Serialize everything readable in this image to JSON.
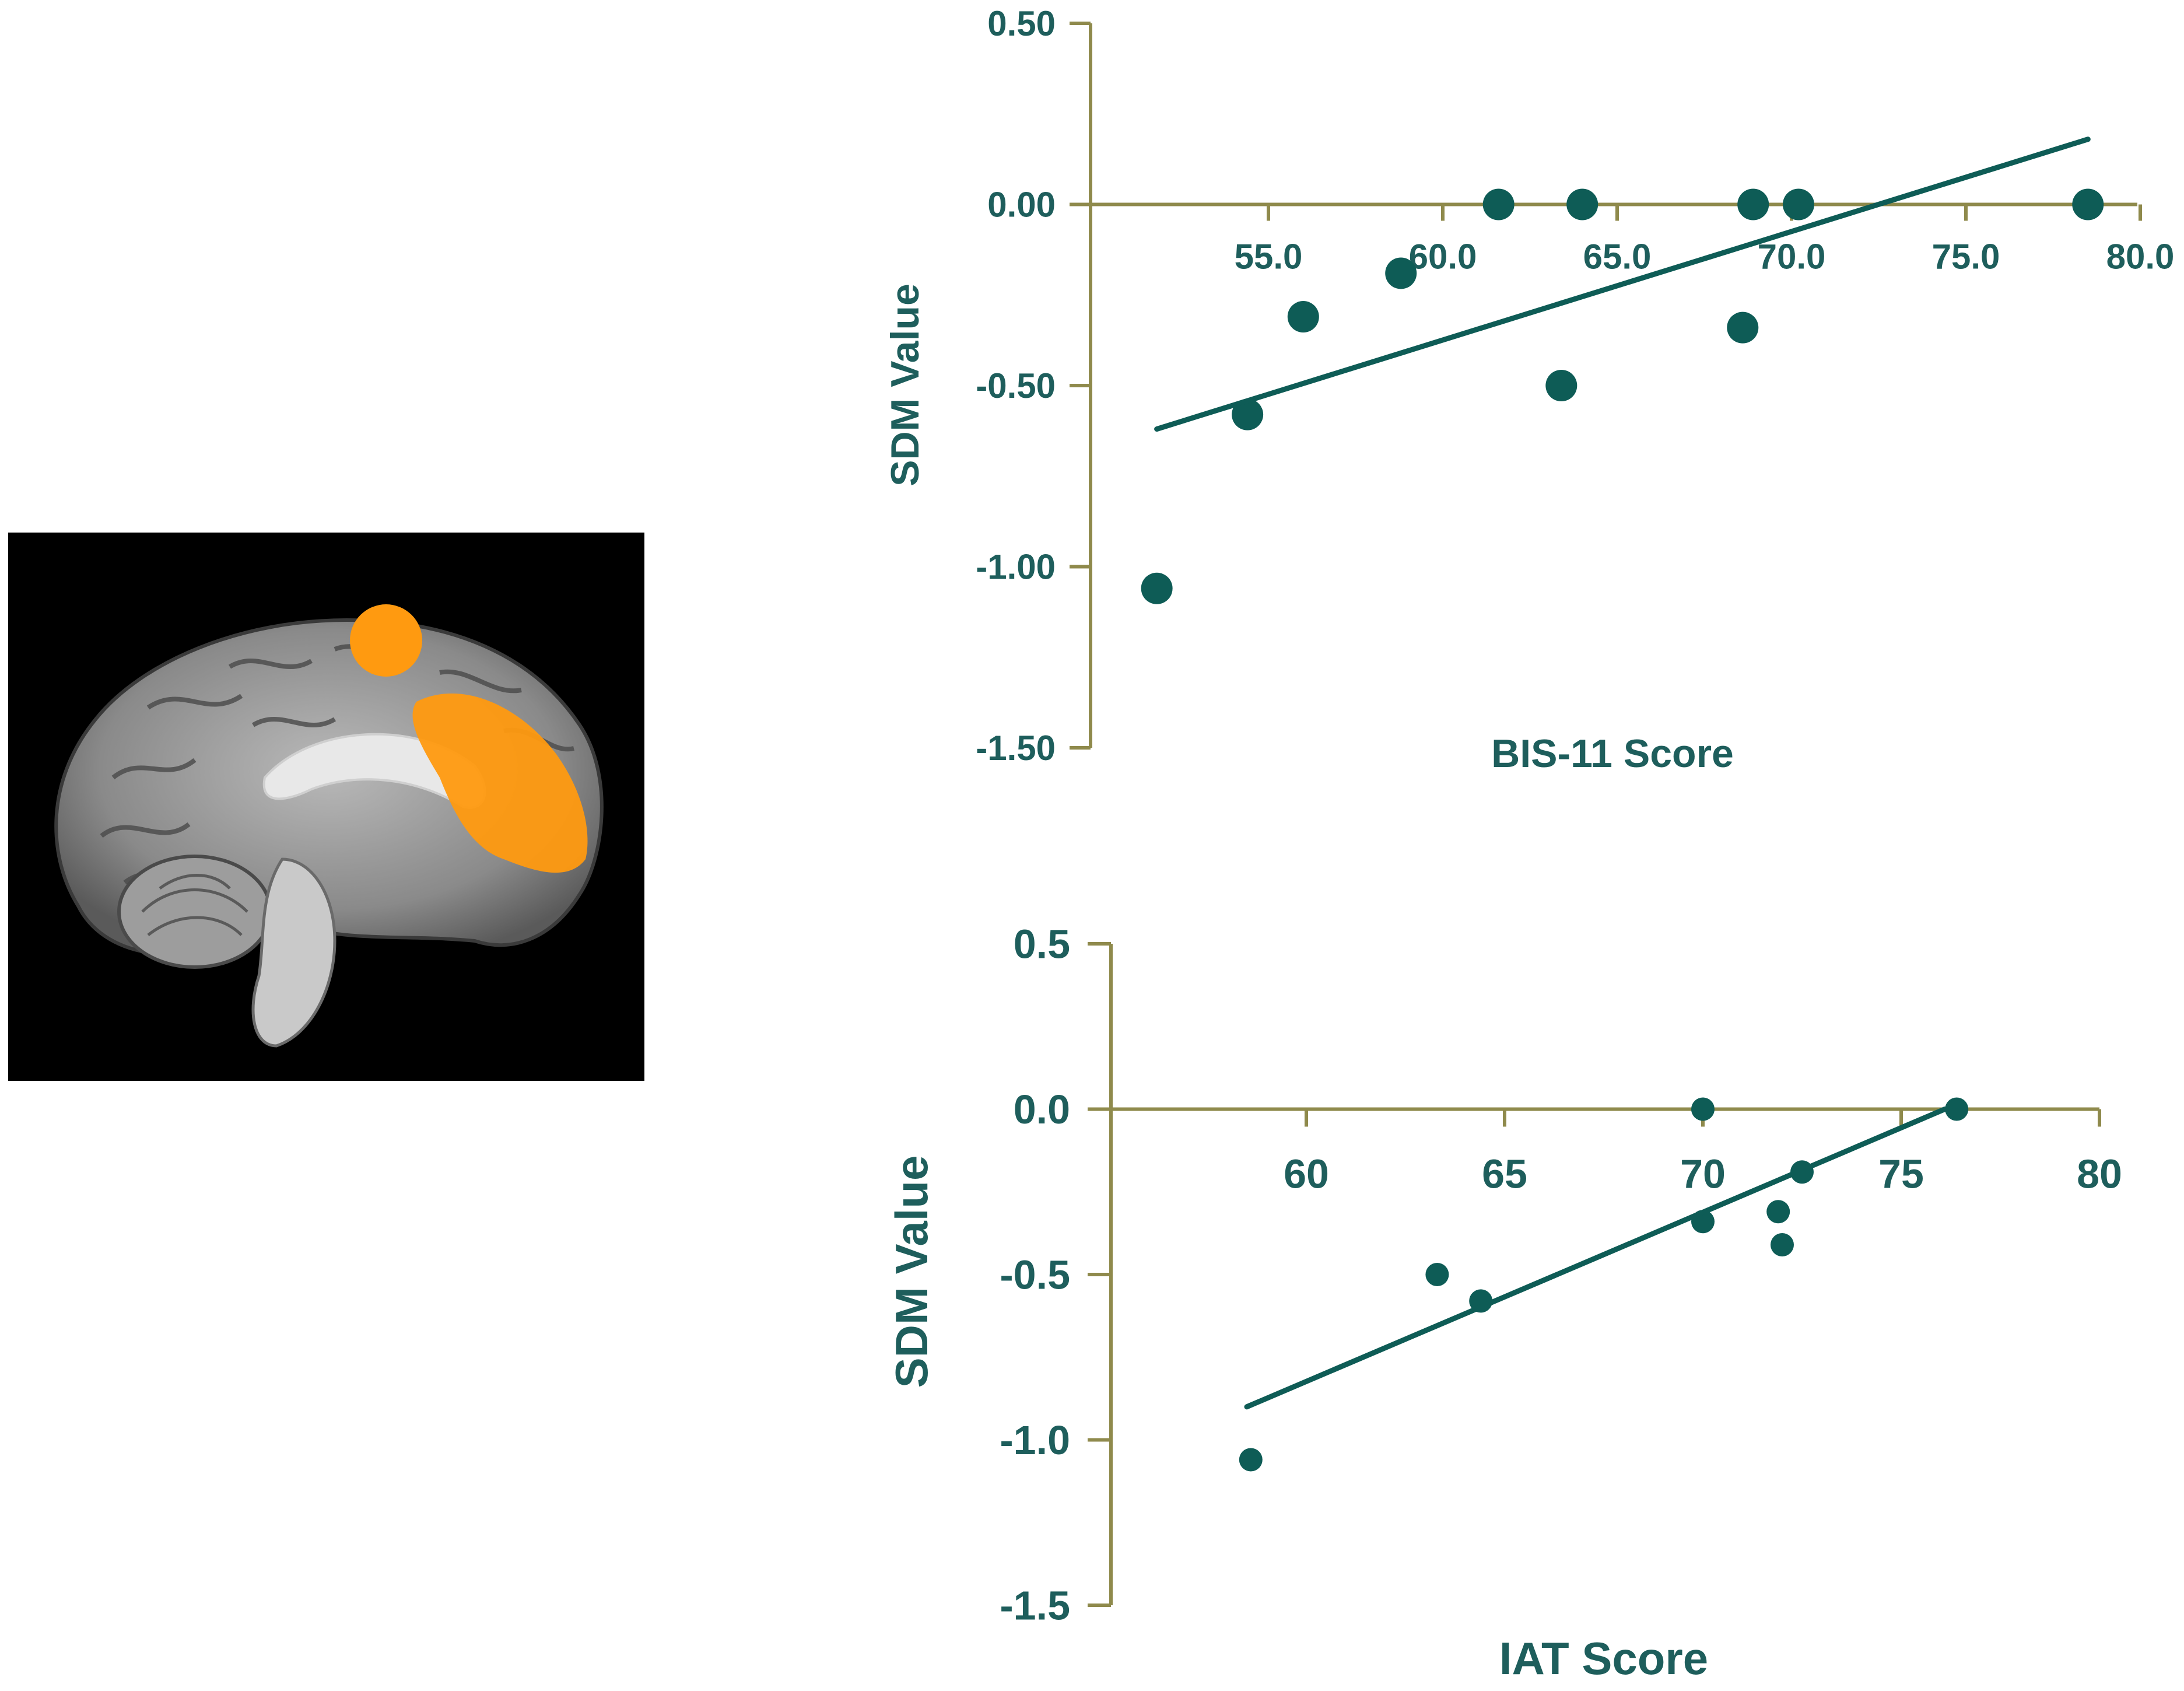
{
  "colors": {
    "axis": "#8f8a4c",
    "marker": "#0e5c56",
    "fit_line": "#0e5c56",
    "text": "#1e5e5c",
    "brain_highlight": "#ff9a10"
  },
  "brain_image": {
    "region": "highlighted medial prefrontal cortex / anterior cingulate cluster"
  },
  "chart_data": [
    {
      "type": "scatter",
      "xlabel": "BIS-11 Score",
      "ylabel": "SDM Value",
      "xlim": [
        50.0,
        80.0
      ],
      "ylim": [
        -1.5,
        0.5
      ],
      "x_ticks": [
        55.0,
        60.0,
        65.0,
        70.0,
        75.0,
        80.0
      ],
      "x_tick_labels": [
        "55.0",
        "60.0",
        "65.0",
        "70.0",
        "75.0",
        "80.0"
      ],
      "y_ticks": [
        0.5,
        0.0,
        -0.5,
        -1.0,
        -1.5
      ],
      "y_tick_labels": [
        "0.50",
        "0.00",
        "-0.50",
        "-1.00",
        "-1.50"
      ],
      "points": [
        {
          "x": 51.8,
          "y": -1.06
        },
        {
          "x": 54.4,
          "y": -0.58
        },
        {
          "x": 56.0,
          "y": -0.31
        },
        {
          "x": 58.8,
          "y": -0.19
        },
        {
          "x": 61.6,
          "y": 0.0
        },
        {
          "x": 63.4,
          "y": -0.5
        },
        {
          "x": 64.0,
          "y": 0.0
        },
        {
          "x": 68.6,
          "y": -0.34
        },
        {
          "x": 68.9,
          "y": 0.0
        },
        {
          "x": 70.2,
          "y": 0.0
        },
        {
          "x": 78.5,
          "y": 0.0
        }
      ],
      "fit_line": {
        "x": [
          51.8,
          78.5
        ],
        "y": [
          -0.62,
          0.18
        ]
      },
      "x_axis_at_y": 0.0,
      "grid": false,
      "legend": "none"
    },
    {
      "type": "scatter",
      "xlabel": "IAT Score",
      "ylabel": "SDM Value",
      "xlim": [
        55,
        80
      ],
      "ylim": [
        -1.5,
        0.5
      ],
      "x_ticks": [
        60,
        65,
        70,
        75,
        80
      ],
      "x_tick_labels": [
        "60",
        "65",
        "70",
        "75",
        "80"
      ],
      "y_ticks": [
        0.5,
        0.0,
        -0.5,
        -1.0,
        -1.5
      ],
      "y_tick_labels": [
        "0.5",
        "0.0",
        "-0.5",
        "-1.0",
        "-1.5"
      ],
      "points": [
        {
          "x": 58.6,
          "y": -1.06
        },
        {
          "x": 63.3,
          "y": -0.5
        },
        {
          "x": 64.4,
          "y": -0.58
        },
        {
          "x": 70.0,
          "y": 0.0
        },
        {
          "x": 70.0,
          "y": -0.34
        },
        {
          "x": 71.9,
          "y": -0.31
        },
        {
          "x": 72.0,
          "y": -0.41
        },
        {
          "x": 72.5,
          "y": -0.19
        },
        {
          "x": 76.4,
          "y": 0.0
        }
      ],
      "fit_line": {
        "x": [
          58.5,
          76.1
        ],
        "y": [
          -0.9,
          0.0
        ]
      },
      "x_axis_at_y": 0.0,
      "grid": false,
      "legend": "none"
    }
  ]
}
